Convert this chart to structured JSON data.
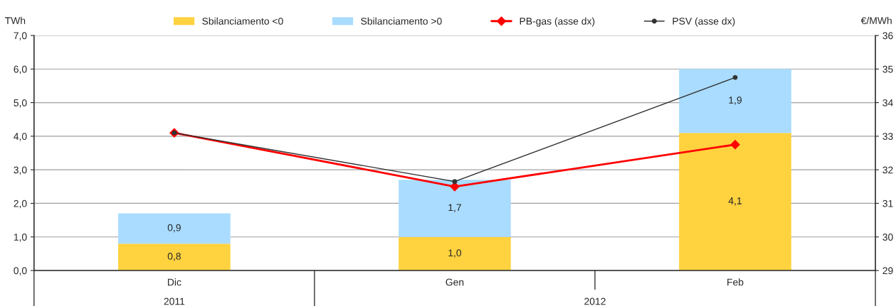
{
  "chart_data": {
    "type": "bar",
    "stacked": true,
    "ylabel": "TWh",
    "y2label": "€/MWh",
    "categories": [
      "Dic",
      "Gen",
      "Feb"
    ],
    "annotations": [
      "2011",
      "2012"
    ],
    "series": [
      {
        "name": "Sbilanciamento <0",
        "color": "#ffd23f",
        "values": [
          0.8,
          1.0,
          4.1
        ],
        "value_labels": [
          "0,8",
          "1,0",
          "4,1"
        ]
      },
      {
        "name": "Sbilanciamento >0",
        "color": "#a9dcff",
        "values": [
          0.9,
          1.7,
          1.9
        ],
        "value_labels": [
          "0,9",
          "1,7",
          "1,9"
        ]
      },
      {
        "name": "PB-gas (asse dx)",
        "type": "line",
        "axis": "y2",
        "color": "#ff0000",
        "marker": "diamond",
        "values": [
          33.1,
          31.5,
          32.75
        ]
      },
      {
        "name": "PSV (asse dx)",
        "type": "line",
        "axis": "y2",
        "color": "#333333",
        "marker": "circle",
        "values": [
          33.1,
          31.65,
          34.75
        ]
      }
    ],
    "ylim": [
      0,
      7
    ],
    "yticks": [
      {
        "value": 0,
        "label": "0,0"
      },
      {
        "value": 1,
        "label": "1,0"
      },
      {
        "value": 2,
        "label": "2,0"
      },
      {
        "value": 3,
        "label": "3,0"
      },
      {
        "value": 4,
        "label": "4,0"
      },
      {
        "value": 5,
        "label": "5,0"
      },
      {
        "value": 6,
        "label": "6,0"
      },
      {
        "value": 7,
        "label": "7,0"
      }
    ],
    "y2lim": [
      29,
      36
    ],
    "y2ticks": [
      29,
      30,
      31,
      32,
      33,
      34,
      35,
      36
    ],
    "grid": "y",
    "legend": "top"
  }
}
